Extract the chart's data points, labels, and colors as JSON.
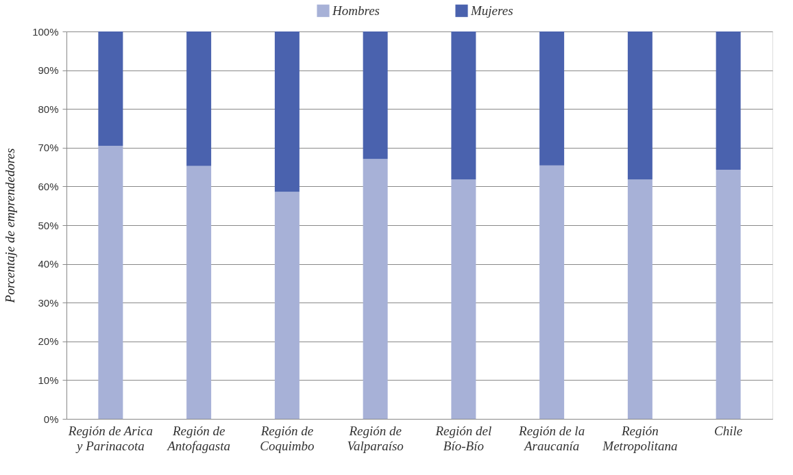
{
  "chart_data": {
    "type": "bar",
    "stacked": true,
    "ylabel": "Porcentaje de emprendedores",
    "categories": [
      "Región de Arica y Parinacota",
      "Región de Antofagasta",
      "Región de Coquimbo",
      "Región de Valparaíso",
      "Región del Bío-Bío",
      "Región de la Araucanía",
      "Región Metropolitana",
      "Chile"
    ],
    "series": [
      {
        "name": "Hombres",
        "color": "#a7b1d7",
        "values": [
          70.5,
          65.3,
          58.6,
          67.1,
          61.8,
          65.4,
          61.8,
          64.3
        ]
      },
      {
        "name": "Mujeres",
        "color": "#4a62ae",
        "values": [
          29.5,
          34.7,
          41.4,
          32.9,
          38.2,
          34.6,
          38.2,
          35.7
        ]
      }
    ],
    "ylim": [
      0,
      100
    ],
    "yticks": [
      {
        "value": 0,
        "label": "0%"
      },
      {
        "value": 10,
        "label": "10%"
      },
      {
        "value": 20,
        "label": "20%"
      },
      {
        "value": 30,
        "label": "30%"
      },
      {
        "value": 40,
        "label": "40%"
      },
      {
        "value": 50,
        "label": "50%"
      },
      {
        "value": 60,
        "label": "60%"
      },
      {
        "value": 70,
        "label": "70%"
      },
      {
        "value": 80,
        "label": "80%"
      },
      {
        "value": 90,
        "label": "90%"
      },
      {
        "value": 100,
        "label": "100%"
      }
    ],
    "grid": "y",
    "legend": "top"
  }
}
